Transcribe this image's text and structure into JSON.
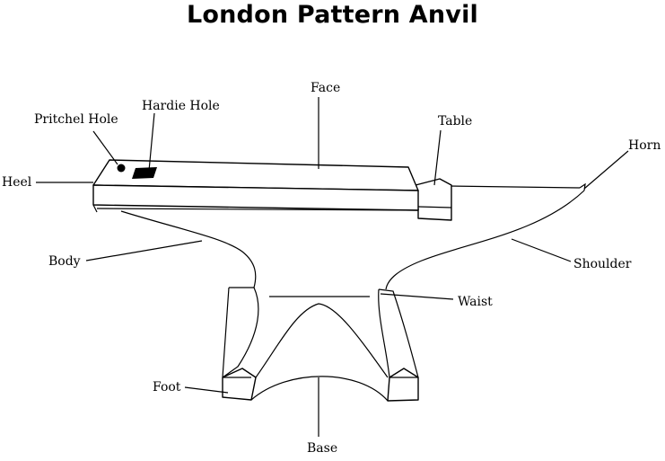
{
  "title": "London Pattern Anvil",
  "labels": {
    "face": "Face",
    "hardie_hole": "Hardie Hole",
    "pritchel_hole": "Pritchel Hole",
    "table": "Table",
    "horn": "Horn",
    "heel": "Heel",
    "body": "Body",
    "shoulder": "Shoulder",
    "waist": "Waist",
    "foot": "Foot",
    "base": "Base"
  }
}
